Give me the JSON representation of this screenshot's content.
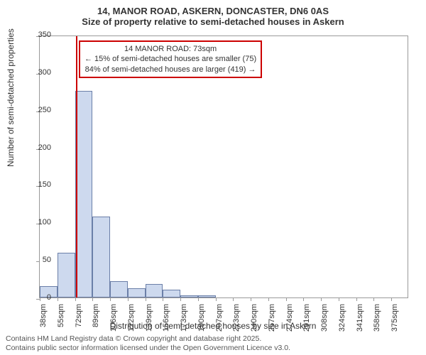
{
  "titles": {
    "line1": "14, MANOR ROAD, ASKERN, DONCASTER, DN6 0AS",
    "line2": "Size of property relative to semi-detached houses in Askern"
  },
  "yaxis": {
    "label": "Number of semi-detached properties",
    "lim": [
      0,
      350
    ],
    "ticks": [
      0,
      50,
      100,
      150,
      200,
      250,
      300,
      350
    ]
  },
  "xaxis": {
    "label": "Distribution of semi-detached houses by size in Askern",
    "categories": [
      "38sqm",
      "55sqm",
      "72sqm",
      "89sqm",
      "106sqm",
      "122sqm",
      "139sqm",
      "156sqm",
      "173sqm",
      "190sqm",
      "207sqm",
      "223sqm",
      "240sqm",
      "257sqm",
      "274sqm",
      "291sqm",
      "308sqm",
      "324sqm",
      "341sqm",
      "358sqm",
      "375sqm"
    ]
  },
  "bars": {
    "values": [
      15,
      60,
      275,
      108,
      22,
      12,
      18,
      10,
      3,
      3,
      0,
      0,
      0,
      0,
      0,
      0,
      0,
      0,
      0,
      0,
      0
    ],
    "fill_color": "#cdd9ee",
    "border_color": "#6b7fa8",
    "bar_width_ratio": 1.0
  },
  "reference_line": {
    "position_sqm": 73,
    "color": "#cc0000"
  },
  "annotation": {
    "line1": "14 MANOR ROAD: 73sqm",
    "line2": "← 15% of semi-detached houses are smaller (75)",
    "line3": "84% of semi-detached houses are larger (419) →",
    "border_color": "#cc0000"
  },
  "footer": {
    "line1": "Contains HM Land Registry data © Crown copyright and database right 2025.",
    "line2": "Contains public sector information licensed under the Open Government Licence v3.0."
  },
  "style": {
    "background_color": "#ffffff",
    "axis_color": "#999999",
    "text_color": "#333333",
    "title_fontsize": 13,
    "label_fontsize": 12,
    "tick_fontsize": 11,
    "footer_fontsize": 10.5
  }
}
